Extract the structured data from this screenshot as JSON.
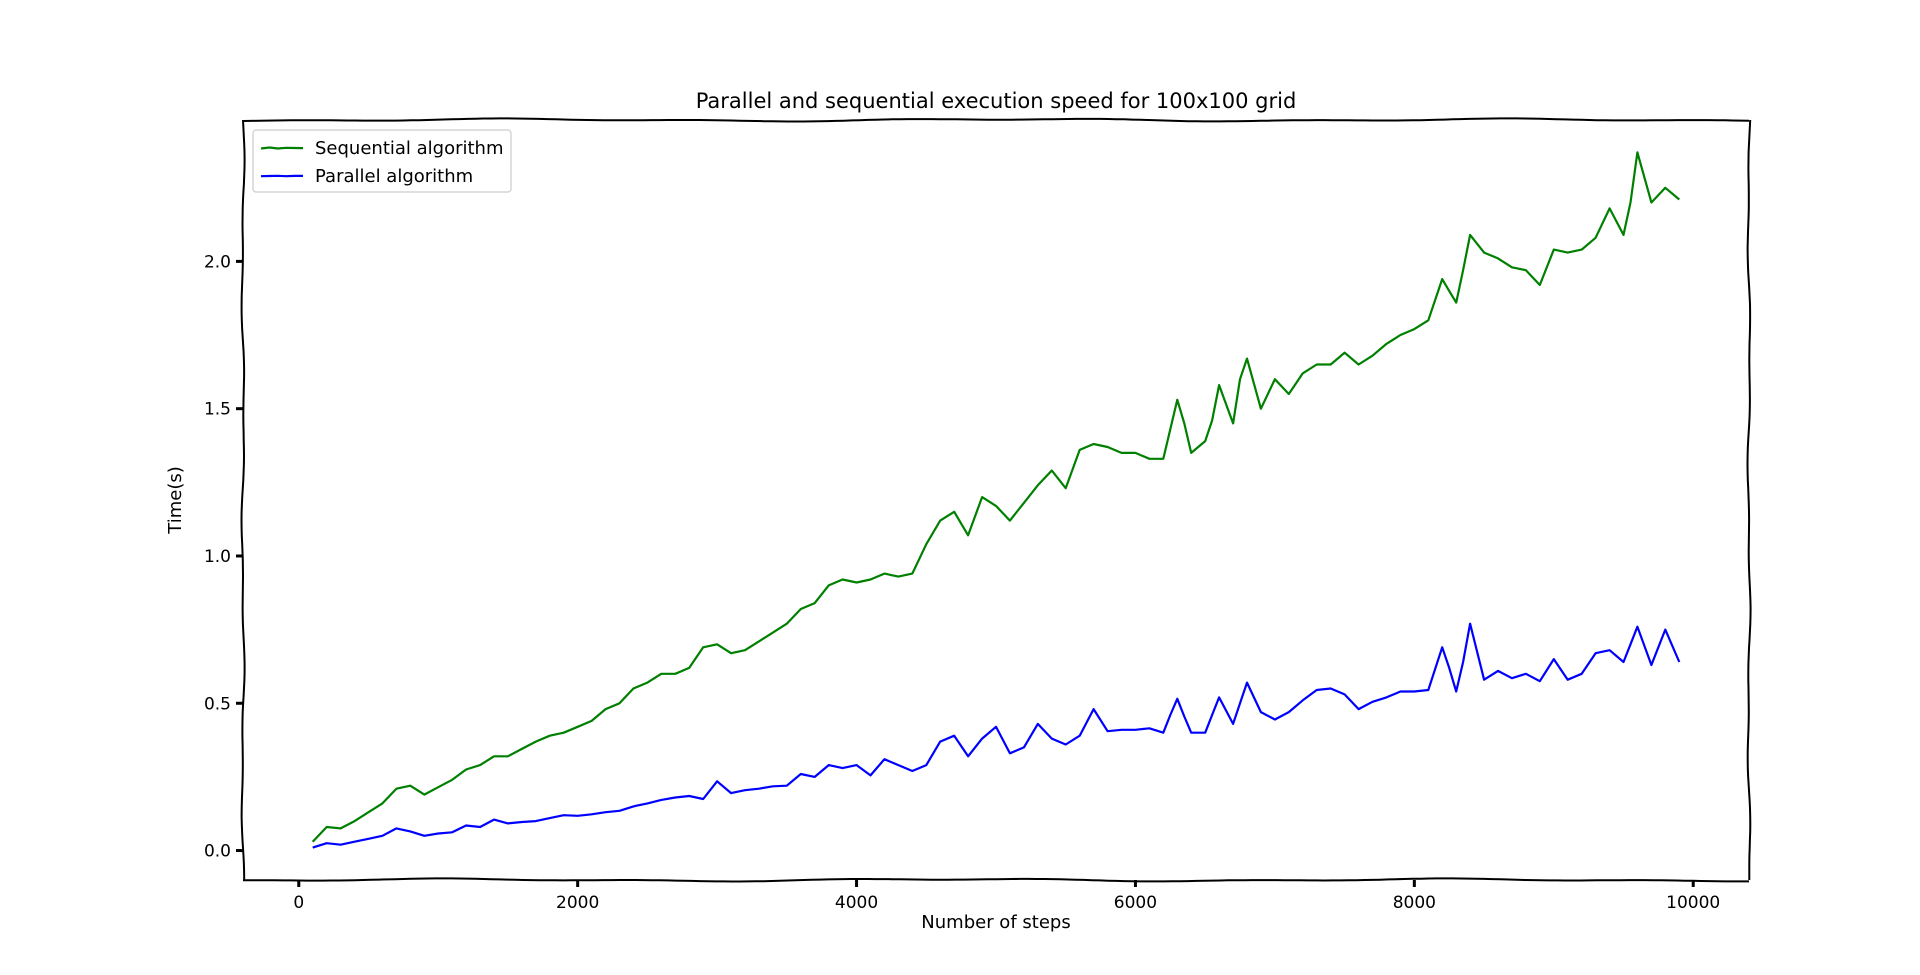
{
  "chart_data": {
    "type": "line",
    "title": "Parallel and sequential execution speed for 100x100 grid",
    "xlabel": "Number of steps",
    "ylabel": "Time(s)",
    "xlim": [
      -400,
      10400
    ],
    "ylim": [
      -0.1,
      2.48
    ],
    "xticks": [
      0,
      2000,
      4000,
      6000,
      8000,
      10000
    ],
    "xtick_labels": [
      "0",
      "2000",
      "4000",
      "6000",
      "8000",
      "10000"
    ],
    "yticks": [
      0.0,
      0.5,
      1.0,
      1.5,
      2.0
    ],
    "ytick_labels": [
      "0.0",
      "0.5",
      "1.0",
      "1.5",
      "2.0"
    ],
    "grid": false,
    "legend_position": "top-left",
    "x": [
      100,
      200,
      300,
      400,
      500,
      600,
      700,
      800,
      900,
      1000,
      1100,
      1200,
      1300,
      1400,
      1500,
      1600,
      1700,
      1800,
      1900,
      2000,
      2100,
      2200,
      2300,
      2400,
      2500,
      2600,
      2700,
      2800,
      2900,
      3000,
      3100,
      3200,
      3300,
      3400,
      3500,
      3600,
      3700,
      3800,
      3900,
      4000,
      4100,
      4200,
      4300,
      4400,
      4500,
      4600,
      4700,
      4800,
      4900,
      5000,
      5100,
      5200,
      5300,
      5400,
      5500,
      5600,
      5700,
      5800,
      5900,
      6000,
      6100,
      6200,
      6250,
      6300,
      6350,
      6400,
      6500,
      6550,
      6600,
      6700,
      6750,
      6800,
      6900,
      7000,
      7100,
      7200,
      7300,
      7400,
      7500,
      7600,
      7700,
      7800,
      7900,
      8000,
      8100,
      8200,
      8250,
      8300,
      8350,
      8400,
      8500,
      8600,
      8700,
      8800,
      8900,
      9000,
      9100,
      9200,
      9300,
      9400,
      9500,
      9550,
      9600,
      9700,
      9800,
      9900
    ],
    "series": [
      {
        "name": "Sequential algorithm",
        "color": "#008000",
        "values": [
          0.03,
          0.08,
          0.075,
          0.1,
          0.13,
          0.16,
          0.21,
          0.22,
          0.19,
          0.215,
          0.24,
          0.275,
          0.29,
          0.32,
          0.32,
          0.345,
          0.37,
          0.39,
          0.4,
          0.42,
          0.44,
          0.48,
          0.5,
          0.55,
          0.57,
          0.6,
          0.6,
          0.62,
          0.69,
          0.7,
          0.67,
          0.68,
          0.71,
          0.74,
          0.77,
          0.82,
          0.84,
          0.9,
          0.92,
          0.91,
          0.92,
          0.94,
          0.93,
          0.94,
          1.04,
          1.12,
          1.15,
          1.07,
          1.2,
          1.17,
          1.12,
          1.18,
          1.24,
          1.29,
          1.23,
          1.36,
          1.38,
          1.37,
          1.35,
          1.35,
          1.33,
          1.33,
          1.43,
          1.53,
          1.45,
          1.35,
          1.39,
          1.46,
          1.58,
          1.45,
          1.6,
          1.67,
          1.5,
          1.6,
          1.55,
          1.62,
          1.65,
          1.65,
          1.69,
          1.65,
          1.68,
          1.72,
          1.75,
          1.77,
          1.8,
          1.94,
          1.9,
          1.86,
          1.97,
          2.09,
          2.03,
          2.01,
          1.98,
          1.97,
          1.92,
          2.04,
          2.03,
          2.04,
          2.08,
          2.18,
          2.09,
          2.2,
          2.37,
          2.2,
          2.25,
          2.21
        ]
      },
      {
        "name": "Parallel algorithm",
        "color": "#0000ff",
        "values": [
          0.01,
          0.025,
          0.02,
          0.03,
          0.04,
          0.05,
          0.075,
          0.065,
          0.05,
          0.058,
          0.062,
          0.085,
          0.08,
          0.105,
          0.092,
          0.097,
          0.1,
          0.11,
          0.12,
          0.118,
          0.123,
          0.13,
          0.135,
          0.15,
          0.16,
          0.172,
          0.18,
          0.185,
          0.175,
          0.235,
          0.195,
          0.205,
          0.21,
          0.218,
          0.22,
          0.26,
          0.25,
          0.29,
          0.28,
          0.29,
          0.255,
          0.31,
          0.29,
          0.27,
          0.29,
          0.37,
          0.39,
          0.32,
          0.38,
          0.42,
          0.33,
          0.35,
          0.43,
          0.38,
          0.36,
          0.39,
          0.48,
          0.405,
          0.41,
          0.41,
          0.415,
          0.4,
          0.46,
          0.515,
          0.455,
          0.4,
          0.4,
          0.46,
          0.52,
          0.43,
          0.5,
          0.57,
          0.47,
          0.445,
          0.47,
          0.51,
          0.545,
          0.55,
          0.53,
          0.48,
          0.505,
          0.52,
          0.54,
          0.54,
          0.545,
          0.69,
          0.62,
          0.54,
          0.64,
          0.77,
          0.58,
          0.61,
          0.585,
          0.6,
          0.575,
          0.65,
          0.58,
          0.6,
          0.67,
          0.68,
          0.64,
          0.7,
          0.76,
          0.63,
          0.75,
          0.64
        ]
      }
    ]
  }
}
